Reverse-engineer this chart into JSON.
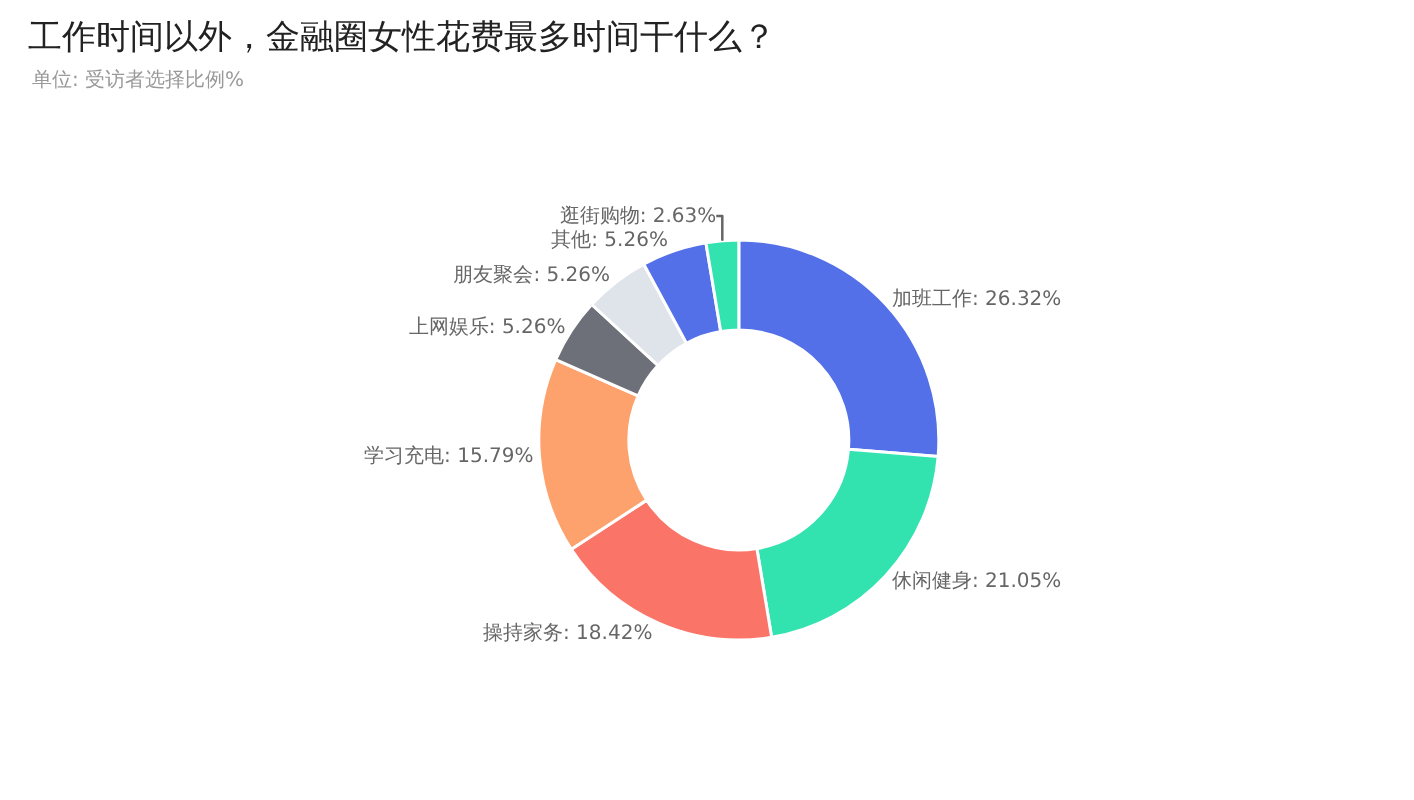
{
  "chart_data": {
    "type": "donut",
    "title": "工作时间以外，金融圈女性花费最多时间干什么？",
    "subtitle": "单位: 受访者选择比例%",
    "categories": [
      "加班工作",
      "休闲健身",
      "操持家务",
      "学习充电",
      "上网娱乐",
      "朋友聚会",
      "其他",
      "逛街购物"
    ],
    "values": [
      26.32,
      21.05,
      18.42,
      15.79,
      5.26,
      5.26,
      5.26,
      2.63
    ],
    "value_labels": [
      "26.32%",
      "21.05%",
      "18.42%",
      "15.79%",
      "5.26%",
      "5.26%",
      "5.26%",
      "2.63%"
    ],
    "colors": [
      "#5470e8",
      "#32e3b0",
      "#fb7468",
      "#fda26c",
      "#6e7079",
      "#dfe3ea",
      "#5470e8",
      "#32e3b0"
    ],
    "legend": false
  }
}
